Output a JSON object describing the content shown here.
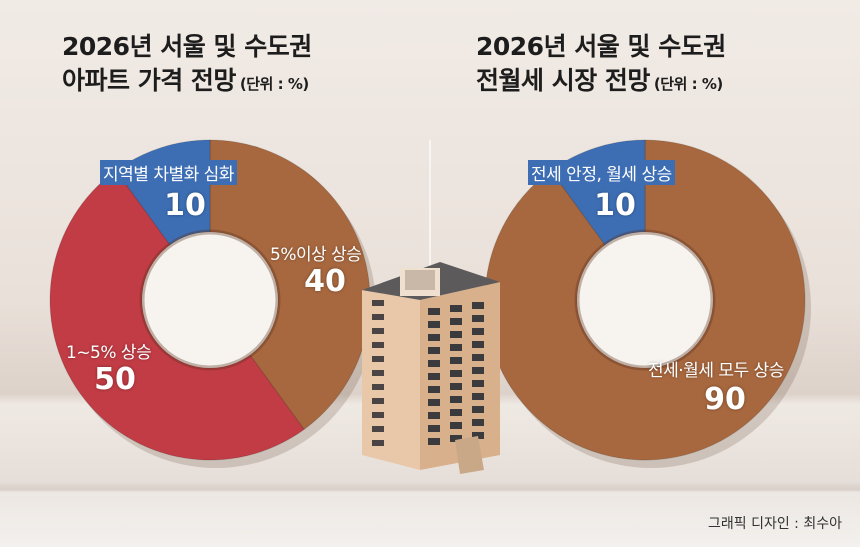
{
  "chart_data": [
    {
      "type": "pie",
      "title_line1": "2026년 서울 및 수도권",
      "title_line2": "아파트 가격 전망",
      "unit": "(단위 : %)",
      "slices": [
        {
          "label": "5%이상 상승",
          "value": 40,
          "color": "#a8683f"
        },
        {
          "label": "1~5% 상승",
          "value": 50,
          "color": "#c23c45"
        },
        {
          "label": "지역별 차별화 심화",
          "value": 10,
          "color": "#3d6eb4"
        }
      ]
    },
    {
      "type": "pie",
      "title_line1": "2026년 서울 및 수도권",
      "title_line2": "전월세 시장 전망",
      "unit": "(단위 : %)",
      "slices": [
        {
          "label": "전세·월세 모두 상승",
          "value": 90,
          "color": "#a8683f"
        },
        {
          "label": "전세 안정, 월세 상승",
          "value": 10,
          "color": "#3d6eb4"
        }
      ]
    }
  ],
  "credit": "그래픽 디자인 : 최수아"
}
